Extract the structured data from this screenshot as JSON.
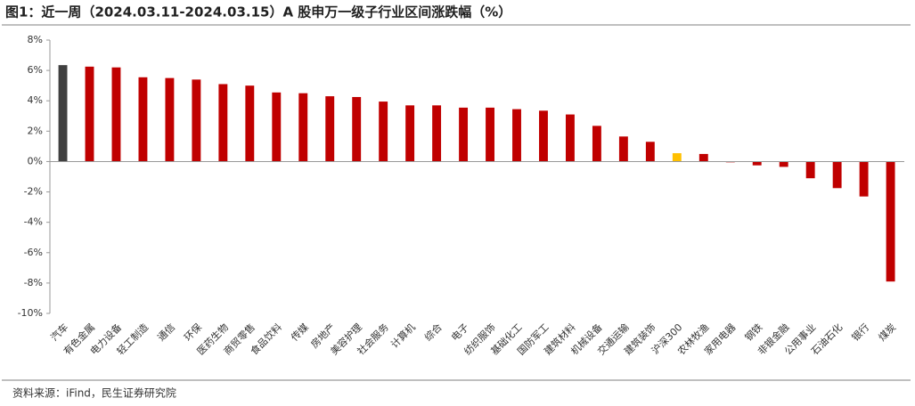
{
  "chart_data": {
    "type": "bar",
    "title": "图1：近一周（2024.03.11-2024.03.15）A 股申万一级子行业区间涨跌幅（%）",
    "source": "资料来源：iFind，民生证券研究院",
    "categories": [
      "汽车",
      "有色金属",
      "电力设备",
      "轻工制造",
      "通信",
      "环保",
      "医药生物",
      "商贸零售",
      "食品饮料",
      "传媒",
      "房地产",
      "美容护理",
      "社会服务",
      "计算机",
      "综合",
      "电子",
      "纺织服饰",
      "基础化工",
      "国防军工",
      "建筑材料",
      "机械设备",
      "交通运输",
      "建筑装饰",
      "沪深300",
      "农林牧渔",
      "家用电器",
      "钢铁",
      "非银金融",
      "公用事业",
      "石油石化",
      "银行",
      "煤炭"
    ],
    "values": [
      6.35,
      6.25,
      6.2,
      5.55,
      5.5,
      5.4,
      5.1,
      5.0,
      4.55,
      4.5,
      4.3,
      4.25,
      3.95,
      3.7,
      3.7,
      3.55,
      3.55,
      3.45,
      3.35,
      3.1,
      2.35,
      1.65,
      1.3,
      0.55,
      0.5,
      -0.05,
      -0.25,
      -0.35,
      -1.1,
      -1.75,
      -2.3,
      -7.9
    ],
    "colors": [
      "#404040",
      "#c00000",
      "#c00000",
      "#c00000",
      "#c00000",
      "#c00000",
      "#c00000",
      "#c00000",
      "#c00000",
      "#c00000",
      "#c00000",
      "#c00000",
      "#c00000",
      "#c00000",
      "#c00000",
      "#c00000",
      "#c00000",
      "#c00000",
      "#c00000",
      "#c00000",
      "#c00000",
      "#c00000",
      "#c00000",
      "#ffc000",
      "#c00000",
      "#c00000",
      "#c00000",
      "#c00000",
      "#c00000",
      "#c00000",
      "#c00000",
      "#c00000"
    ],
    "ylim": [
      -10,
      8
    ],
    "yticks": [
      {
        "value": -10,
        "label": "-10%"
      },
      {
        "value": -8,
        "label": "-8%"
      },
      {
        "value": -6,
        "label": "-6%"
      },
      {
        "value": -4,
        "label": "-4%"
      },
      {
        "value": -2,
        "label": "-2%"
      },
      {
        "value": 0,
        "label": "0%"
      },
      {
        "value": 2,
        "label": "2%"
      },
      {
        "value": 4,
        "label": "4%"
      },
      {
        "value": 6,
        "label": "6%"
      },
      {
        "value": 8,
        "label": "8%"
      }
    ],
    "grid": false
  }
}
